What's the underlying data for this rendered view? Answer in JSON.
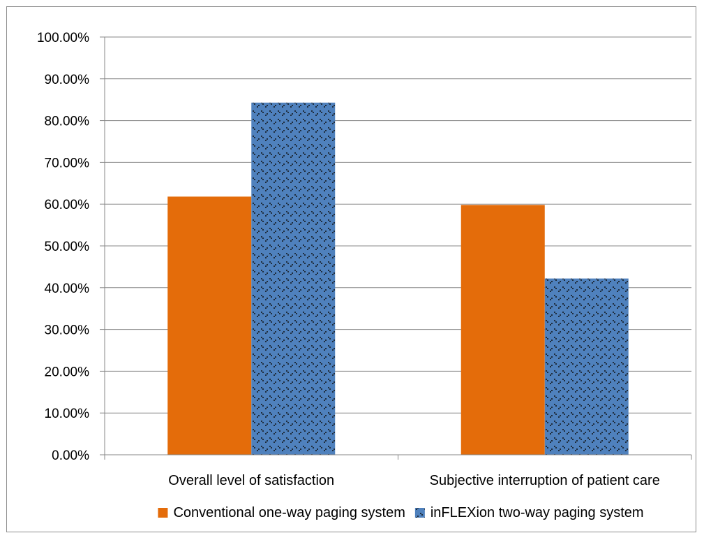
{
  "chart_data": {
    "type": "bar",
    "categories": [
      "Overall level of satisfaction",
      "Subjective interruption of patient care"
    ],
    "series": [
      {
        "name": "Conventional one-way paging system",
        "values": [
          0.618,
          0.598
        ],
        "color": "#E46C0A",
        "pattern": "solid"
      },
      {
        "name": "inFLEXion two-way paging system",
        "values": [
          0.843,
          0.422
        ],
        "color": "#4F81BD",
        "pattern": "dotted-diamond"
      }
    ],
    "title": "",
    "xlabel": "",
    "ylabel": "",
    "ylim": [
      0,
      1
    ],
    "yticks": [
      "0.00%",
      "10.00%",
      "20.00%",
      "30.00%",
      "40.00%",
      "50.00%",
      "60.00%",
      "70.00%",
      "80.00%",
      "90.00%",
      "100.00%"
    ],
    "grid": true,
    "legend_position": "bottom"
  }
}
